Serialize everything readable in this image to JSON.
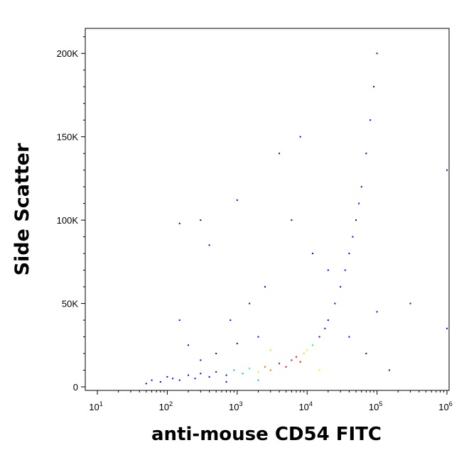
{
  "chart_data": {
    "type": "scatter",
    "title": "",
    "xlabel": "anti-mouse CD54 FITC",
    "ylabel": "Side Scatter",
    "x_scale": "log",
    "xlim": [
      10,
      1000000
    ],
    "ylim": [
      0,
      215000
    ],
    "x_ticks": [
      {
        "value": 10,
        "base": "10",
        "exp": "1"
      },
      {
        "value": 100,
        "base": "10",
        "exp": "2"
      },
      {
        "value": 1000,
        "base": "10",
        "exp": "3"
      },
      {
        "value": 10000,
        "base": "10",
        "exp": "4"
      },
      {
        "value": 100000,
        "base": "10",
        "exp": "5"
      },
      {
        "value": 1000000,
        "base": "10",
        "exp": "6"
      }
    ],
    "y_ticks": [
      {
        "value": 0,
        "label": "0"
      },
      {
        "value": 50000,
        "label": "50K"
      },
      {
        "value": 100000,
        "label": "100K"
      },
      {
        "value": 150000,
        "label": "150K"
      },
      {
        "value": 200000,
        "label": "200K"
      }
    ],
    "grid": false,
    "legend": "none",
    "density_colormap": [
      "#0000ff",
      "#00b4ff",
      "#00ffb0",
      "#c8ff00",
      "#ffd200",
      "#ff6400",
      "#ff0000"
    ],
    "series": [
      {
        "points": [
          [
            60,
            4000
          ],
          [
            80,
            3000
          ],
          [
            100,
            6000
          ],
          [
            120,
            5000
          ],
          [
            150,
            4000
          ],
          [
            200,
            7000
          ],
          [
            250,
            5000
          ],
          [
            300,
            8000
          ],
          [
            400,
            6000
          ],
          [
            500,
            9000
          ],
          [
            700,
            7000
          ],
          [
            900,
            10000
          ],
          [
            1200,
            8000
          ],
          [
            1500,
            11000
          ],
          [
            2000,
            9000
          ],
          [
            2500,
            12000
          ],
          [
            3000,
            10000
          ],
          [
            4000,
            14000
          ],
          [
            5000,
            12000
          ],
          [
            6000,
            16000
          ],
          [
            7000,
            18000
          ],
          [
            8000,
            15000
          ],
          [
            9000,
            20000
          ],
          [
            10000,
            22000
          ],
          [
            12000,
            25000
          ],
          [
            15000,
            30000
          ],
          [
            18000,
            35000
          ],
          [
            20000,
            40000
          ],
          [
            25000,
            50000
          ],
          [
            30000,
            60000
          ],
          [
            35000,
            70000
          ],
          [
            40000,
            80000
          ],
          [
            45000,
            90000
          ],
          [
            50000,
            100000
          ],
          [
            55000,
            110000
          ],
          [
            60000,
            120000
          ],
          [
            70000,
            140000
          ],
          [
            80000,
            160000
          ],
          [
            90000,
            180000
          ],
          [
            100000,
            200000
          ],
          [
            3000,
            22000
          ],
          [
            2000,
            30000
          ],
          [
            1000,
            26000
          ],
          [
            500,
            20000
          ],
          [
            300,
            16000
          ],
          [
            200,
            25000
          ],
          [
            150,
            40000
          ],
          [
            800,
            40000
          ],
          [
            1500,
            50000
          ],
          [
            2500,
            60000
          ],
          [
            400,
            85000
          ],
          [
            150,
            98000
          ],
          [
            300,
            100000
          ],
          [
            1000,
            112000
          ],
          [
            4000,
            140000
          ],
          [
            8000,
            150000
          ],
          [
            6000,
            100000
          ],
          [
            12000,
            80000
          ],
          [
            20000,
            70000
          ],
          [
            40000,
            30000
          ],
          [
            70000,
            20000
          ],
          [
            100000,
            45000
          ],
          [
            150000,
            10000
          ],
          [
            300000,
            50000
          ],
          [
            1000000,
            130000
          ],
          [
            1000000,
            35000
          ],
          [
            15000,
            10000
          ],
          [
            2000,
            4000
          ],
          [
            700,
            3000
          ],
          [
            50,
            2000
          ]
        ]
      }
    ]
  }
}
